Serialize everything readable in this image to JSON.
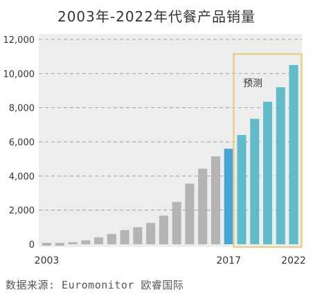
{
  "chart_data": {
    "type": "bar",
    "title": "2003年-2022年代餐产品销量",
    "categories": [
      "2003",
      "2004",
      "2005",
      "2006",
      "2007",
      "2008",
      "2009",
      "2010",
      "2011",
      "2012",
      "2013",
      "2014",
      "2015",
      "2016",
      "2017",
      "2018",
      "2019",
      "2020",
      "2021",
      "2022"
    ],
    "values": [
      0,
      0,
      120,
      230,
      400,
      600,
      830,
      1000,
      1250,
      1680,
      2480,
      3550,
      4430,
      5150,
      5600,
      6400,
      7350,
      8350,
      9200,
      10500
    ],
    "x_tick_labels": [
      {
        "category": "2003",
        "label": "2003"
      },
      {
        "category": "2017",
        "label": "2017"
      },
      {
        "category": "2022",
        "label": "2022"
      }
    ],
    "ylim": [
      0,
      12000
    ],
    "y_ticks": [
      0,
      2000,
      4000,
      6000,
      8000,
      10000,
      12000
    ],
    "y_tick_labels": [
      "0",
      "2,000",
      "4,000",
      "6,000",
      "8,000",
      "10,000",
      "12,000"
    ],
    "grid": "horizontal dashed",
    "highlight_category": "2017",
    "forecast_categories": [
      "2018",
      "2019",
      "2020",
      "2021",
      "2022"
    ],
    "forecast_label": "预测",
    "colors": {
      "historical": "#b4b4b4",
      "highlight": "#45a3d6",
      "forecast": "#5fbcc8",
      "forecast_box": "#e9cf88",
      "plot_background": "#ededed",
      "grid": "#a0a0a0"
    }
  },
  "source_note": "数据来源: Euromonitor 欧睿国际"
}
